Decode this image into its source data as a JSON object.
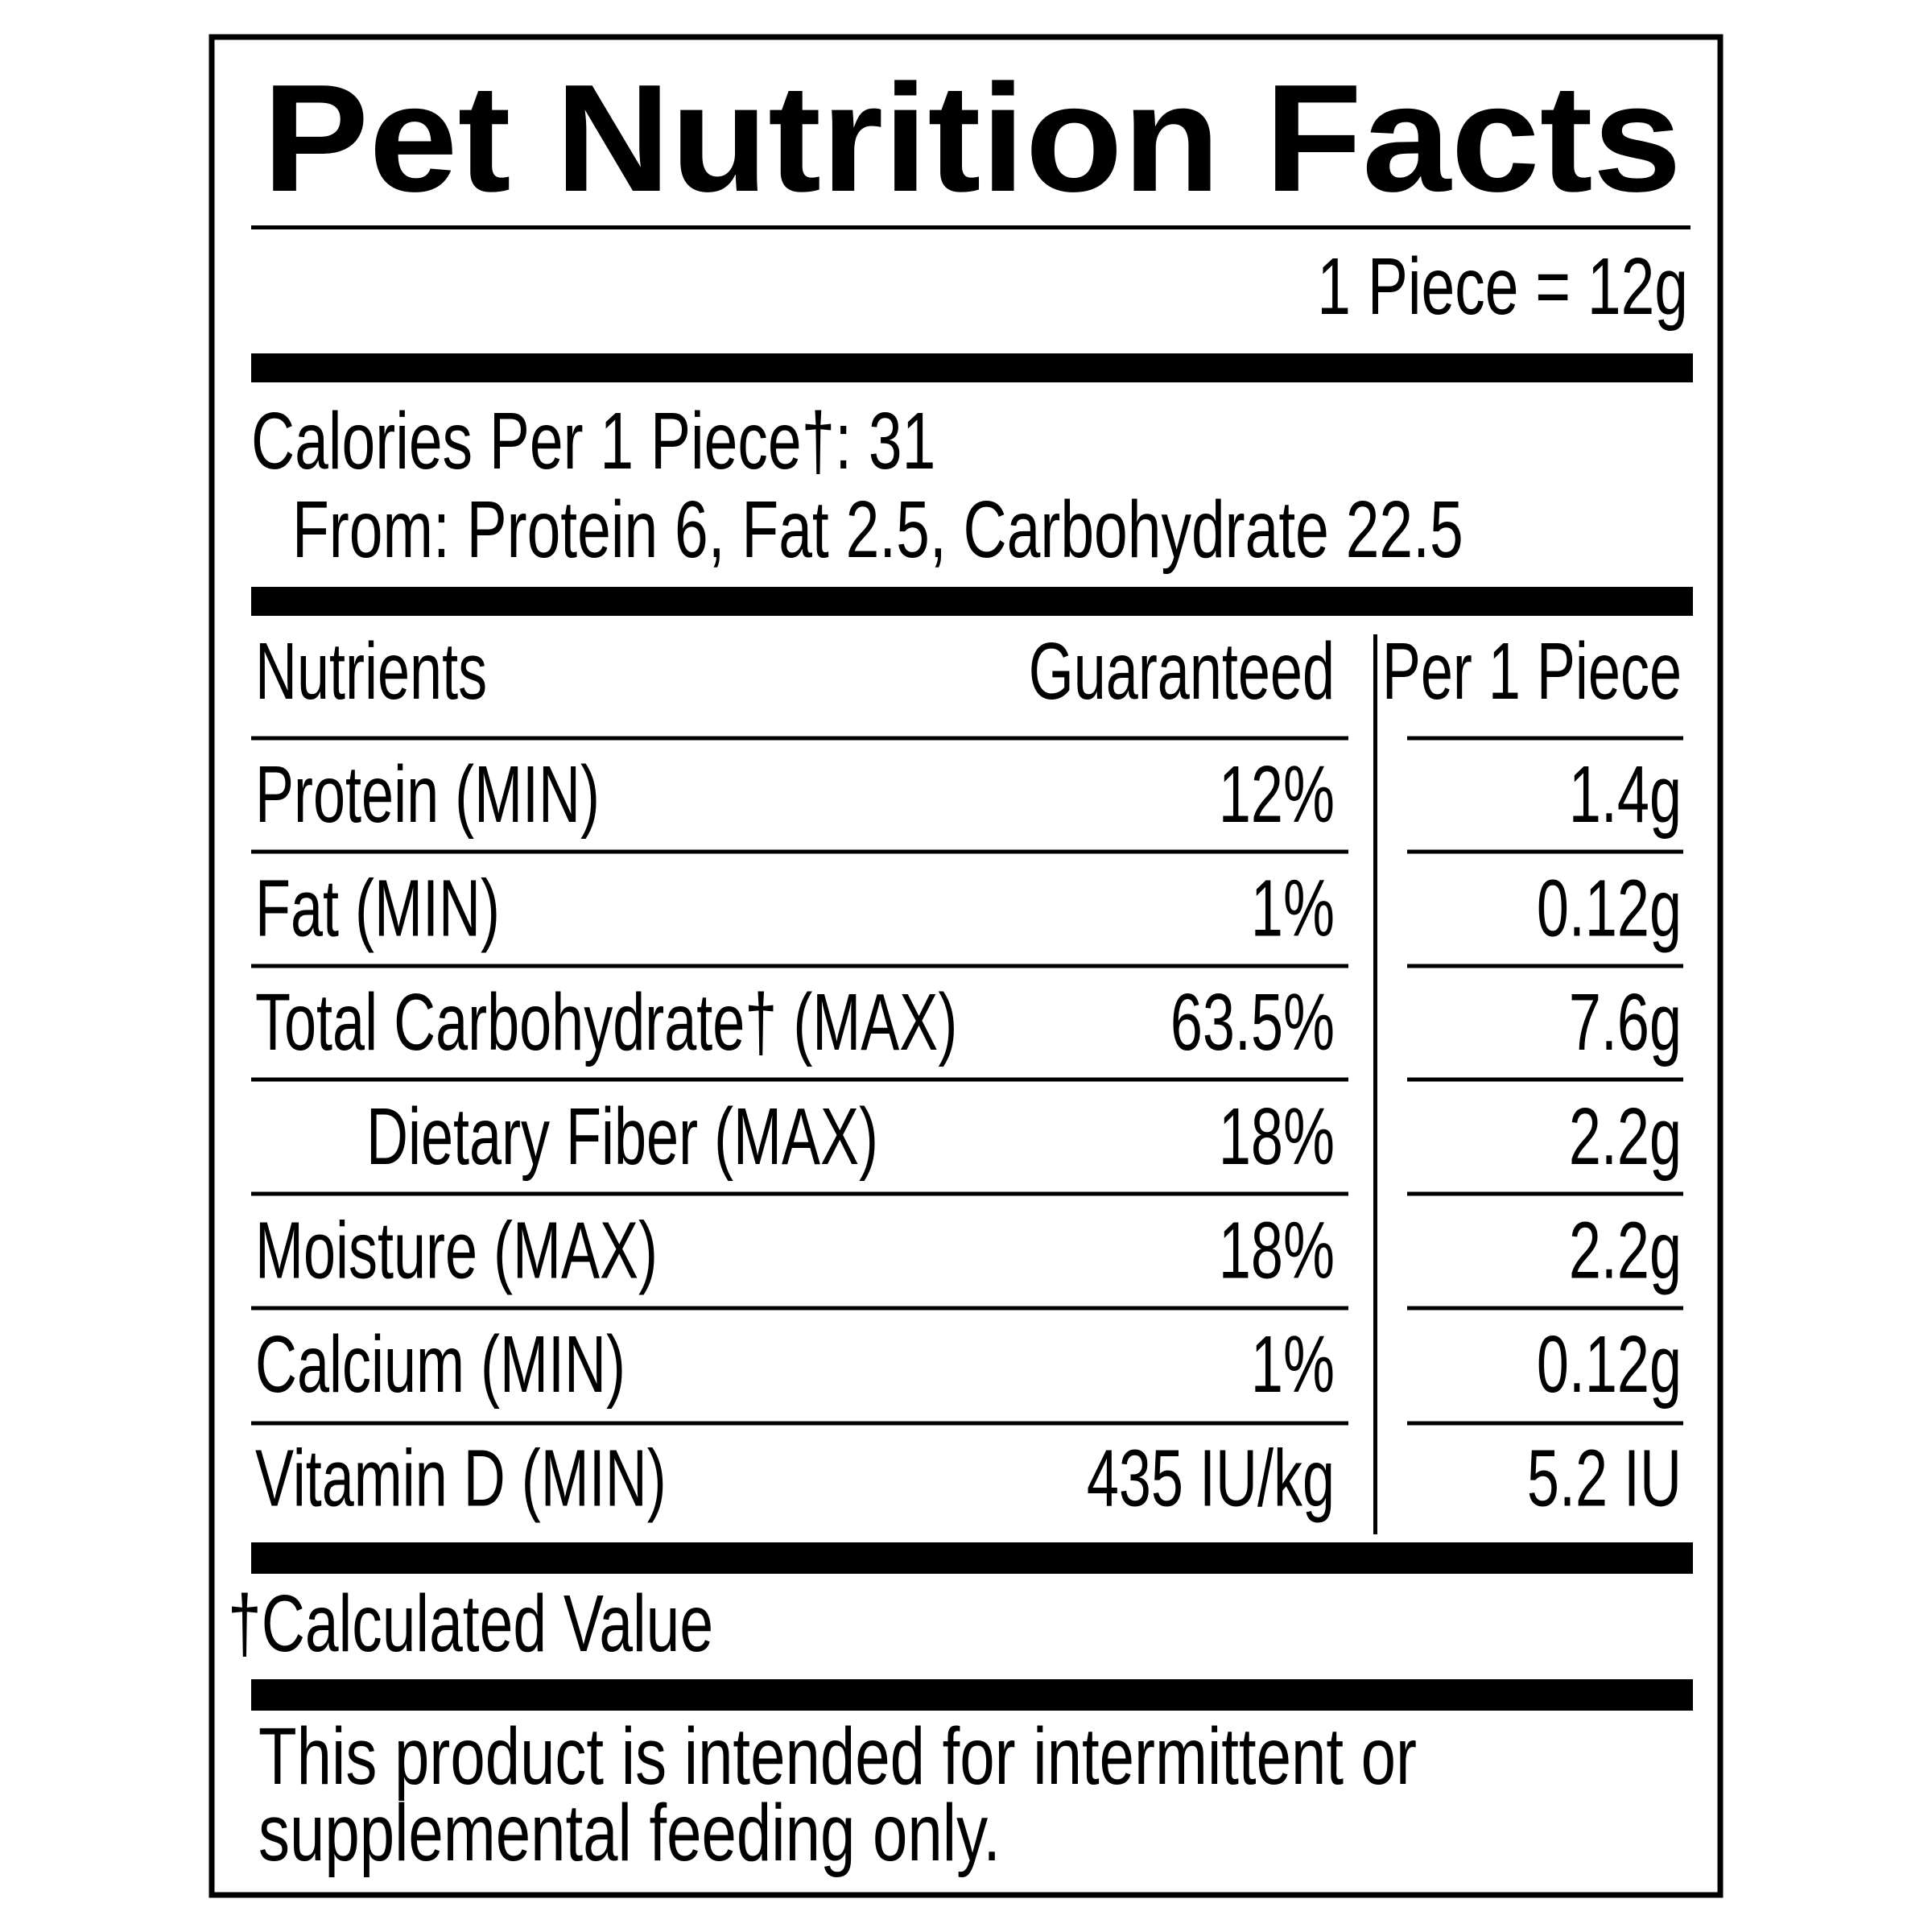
{
  "header": {
    "title": "Pet Nutrition Facts",
    "serving": "1 Piece = 12g"
  },
  "calories": {
    "line": "Calories Per 1 Piece†: 31",
    "from": "From: Protein 6, Fat 2.5, Carbohydrate 22.5"
  },
  "table": {
    "headers": [
      "Nutrients",
      "Guaranteed",
      "Per 1 Piece"
    ],
    "rows": [
      [
        "Protein (MIN)",
        "12%",
        "1.4g"
      ],
      [
        "Fat (MIN)",
        "1%",
        "0.12g"
      ],
      [
        "Total Carbohydrate†  (MAX)",
        "63.5%",
        "7.6g"
      ],
      [
        "Dietary Fiber (MAX)",
        "18%",
        "2.2g"
      ],
      [
        "Moisture (MAX)",
        "18%",
        "2.2g"
      ],
      [
        "Calcium (MIN)",
        "1%",
        "0.12g"
      ],
      [
        "Vitamin D (MIN)",
        "435 IU/kg",
        "5.2 IU"
      ]
    ]
  },
  "footnote": "†Calculated Value",
  "disclaimer": [
    "This product is intended for intermittent or",
    "supplemental feeding only."
  ]
}
